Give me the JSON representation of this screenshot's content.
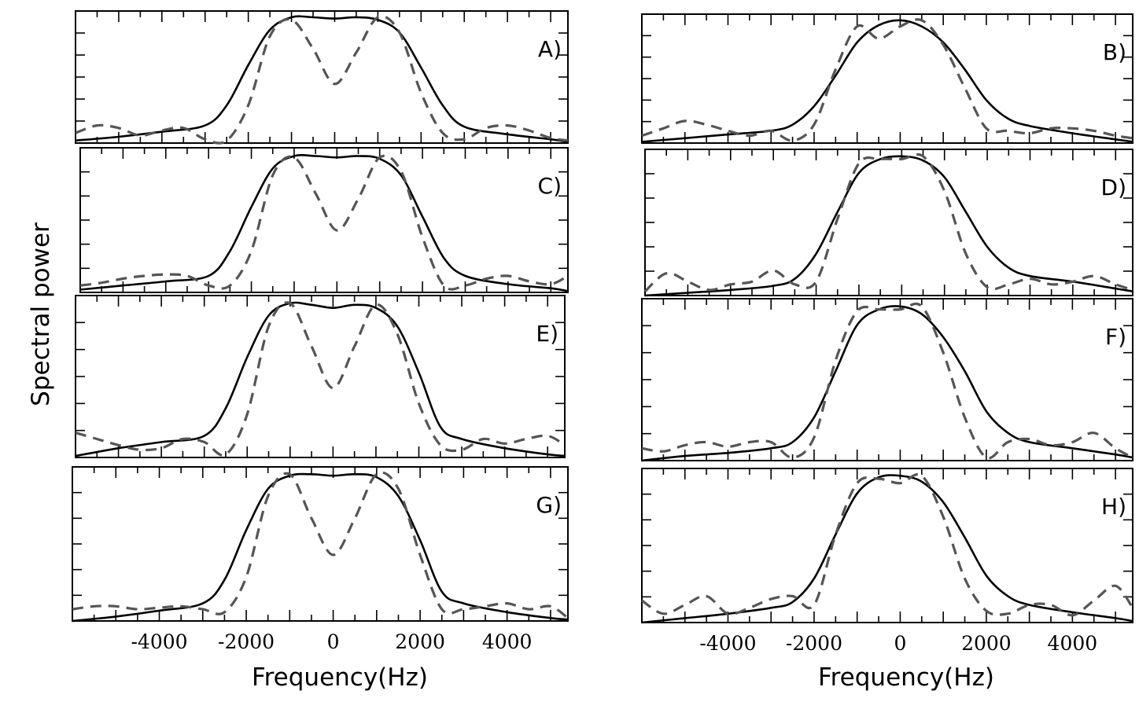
{
  "chart_data": {
    "type": "line",
    "ylabel": "Spectral power",
    "xlabel": "Frequency(Hz)",
    "xticks": [
      -4000,
      -2000,
      0,
      2000,
      4000
    ],
    "xlim": [
      -6000,
      5400
    ],
    "ylim": [
      0,
      1.05
    ],
    "grid": false,
    "legend": "none",
    "panels": [
      {
        "label": "A)",
        "series": [
          {
            "style": "solid",
            "x": [
              -6000,
              -5000,
              -4000,
              -3000,
              -2500,
              -2000,
              -1500,
              -1000,
              -500,
              0,
              500,
              1000,
              1500,
              2000,
              2500,
              3000,
              4000,
              5000,
              5400
            ],
            "y": [
              0.02,
              0.05,
              0.09,
              0.14,
              0.3,
              0.62,
              0.9,
              1.0,
              1.0,
              0.99,
              1.0,
              0.98,
              0.88,
              0.6,
              0.3,
              0.13,
              0.07,
              0.03,
              0.01
            ]
          },
          {
            "style": "dashed",
            "x": [
              -6000,
              -5500,
              -5000,
              -4500,
              -4000,
              -3500,
              -3000,
              -2500,
              -2000,
              -1500,
              -1000,
              -500,
              0,
              500,
              1000,
              1500,
              2000,
              2500,
              3000,
              3500,
              4000,
              4500,
              5000,
              5400
            ],
            "y": [
              0.08,
              0.14,
              0.12,
              0.06,
              0.1,
              0.12,
              0.03,
              0.02,
              0.3,
              0.85,
              0.98,
              0.75,
              0.47,
              0.72,
              1.0,
              0.88,
              0.4,
              0.08,
              0.03,
              0.12,
              0.14,
              0.1,
              0.04,
              0.02
            ]
          }
        ]
      },
      {
        "label": "B)",
        "series": [
          {
            "style": "solid",
            "x": [
              -6000,
              -5000,
              -4000,
              -3000,
              -2500,
              -2000,
              -1500,
              -1000,
              -500,
              0,
              500,
              1000,
              1500,
              2000,
              2500,
              3000,
              4000,
              5000,
              5400
            ],
            "y": [
              0.01,
              0.04,
              0.07,
              0.1,
              0.15,
              0.3,
              0.55,
              0.82,
              0.96,
              1.0,
              0.95,
              0.82,
              0.6,
              0.35,
              0.2,
              0.14,
              0.08,
              0.03,
              0.01
            ]
          },
          {
            "style": "dashed",
            "x": [
              -6000,
              -5500,
              -5000,
              -4500,
              -4000,
              -3500,
              -3000,
              -2500,
              -2000,
              -1500,
              -1000,
              -500,
              0,
              500,
              1000,
              1500,
              2000,
              2500,
              3000,
              3500,
              4000,
              4500,
              5000,
              5400
            ],
            "y": [
              0.06,
              0.12,
              0.18,
              0.15,
              0.1,
              0.06,
              0.1,
              0.02,
              0.15,
              0.6,
              0.95,
              0.85,
              0.95,
              1.0,
              0.8,
              0.45,
              0.12,
              0.1,
              0.08,
              0.12,
              0.12,
              0.1,
              0.06,
              0.04
            ]
          }
        ]
      },
      {
        "label": "C)",
        "series": [
          {
            "style": "solid",
            "x": [
              -6000,
              -5000,
              -4000,
              -3000,
              -2500,
              -2000,
              -1500,
              -1000,
              -500,
              0,
              500,
              1000,
              1500,
              2000,
              2500,
              3000,
              4000,
              5000,
              5400
            ],
            "y": [
              0.02,
              0.05,
              0.08,
              0.12,
              0.3,
              0.62,
              0.9,
              0.99,
              0.99,
              0.98,
              0.99,
              0.97,
              0.85,
              0.55,
              0.25,
              0.12,
              0.06,
              0.03,
              0.01
            ]
          },
          {
            "style": "dashed",
            "x": [
              -6000,
              -5500,
              -5000,
              -4500,
              -4000,
              -3500,
              -3000,
              -2500,
              -2000,
              -1500,
              -1000,
              -500,
              0,
              500,
              1000,
              1500,
              2000,
              2500,
              3000,
              3500,
              4000,
              4500,
              5000,
              5400
            ],
            "y": [
              0.05,
              0.07,
              0.1,
              0.12,
              0.13,
              0.12,
              0.05,
              0.05,
              0.3,
              0.85,
              0.98,
              0.72,
              0.45,
              0.68,
              0.98,
              0.88,
              0.4,
              0.05,
              0.05,
              0.1,
              0.12,
              0.08,
              0.06,
              0.12
            ]
          }
        ]
      },
      {
        "label": "D)",
        "series": [
          {
            "style": "solid",
            "x": [
              -6000,
              -5000,
              -4000,
              -3000,
              -2500,
              -2000,
              -1500,
              -1000,
              -500,
              0,
              500,
              1000,
              1500,
              2000,
              2500,
              3000,
              4000,
              5000,
              5400
            ],
            "y": [
              0.0,
              0.02,
              0.04,
              0.07,
              0.12,
              0.3,
              0.6,
              0.88,
              0.98,
              1.0,
              0.97,
              0.85,
              0.6,
              0.35,
              0.2,
              0.14,
              0.1,
              0.05,
              0.03
            ]
          },
          {
            "style": "dashed",
            "x": [
              -6000,
              -5500,
              -5000,
              -4500,
              -4000,
              -3500,
              -3000,
              -2500,
              -2000,
              -1500,
              -1000,
              -500,
              0,
              500,
              1000,
              1500,
              2000,
              2500,
              3000,
              3500,
              4000,
              4500,
              5000,
              5400
            ],
            "y": [
              0.03,
              0.16,
              0.1,
              0.04,
              0.08,
              0.1,
              0.18,
              0.08,
              0.1,
              0.55,
              0.95,
              0.98,
              0.98,
              1.0,
              0.75,
              0.3,
              0.06,
              0.08,
              0.12,
              0.08,
              0.1,
              0.14,
              0.08,
              0.04
            ]
          }
        ]
      },
      {
        "label": "E)",
        "series": [
          {
            "style": "solid",
            "x": [
              -6000,
              -5000,
              -4000,
              -3000,
              -2500,
              -2000,
              -1500,
              -1000,
              -500,
              0,
              500,
              1000,
              1500,
              2000,
              2500,
              3000,
              4000,
              5000,
              5400
            ],
            "y": [
              0.01,
              0.06,
              0.1,
              0.14,
              0.32,
              0.65,
              0.92,
              1.0,
              0.99,
              0.97,
              0.99,
              0.97,
              0.85,
              0.55,
              0.2,
              0.12,
              0.06,
              0.02,
              0.01
            ]
          },
          {
            "style": "dashed",
            "x": [
              -6000,
              -5500,
              -5000,
              -4500,
              -4000,
              -3500,
              -3000,
              -2500,
              -2000,
              -1500,
              -1000,
              -500,
              0,
              500,
              1000,
              1500,
              2000,
              2500,
              3000,
              3500,
              4000,
              4500,
              5000,
              5400
            ],
            "y": [
              0.16,
              0.12,
              0.08,
              0.05,
              0.06,
              0.12,
              0.1,
              0.02,
              0.28,
              0.85,
              1.0,
              0.72,
              0.45,
              0.72,
              0.99,
              0.8,
              0.35,
              0.08,
              0.05,
              0.12,
              0.09,
              0.12,
              0.14,
              0.08
            ]
          }
        ]
      },
      {
        "label": "F)",
        "series": [
          {
            "style": "solid",
            "x": [
              -6000,
              -5000,
              -4000,
              -3000,
              -2500,
              -2000,
              -1500,
              -1000,
              -500,
              0,
              500,
              1000,
              1500,
              2000,
              2500,
              3000,
              4000,
              5000,
              5400
            ],
            "y": [
              0.0,
              0.03,
              0.05,
              0.08,
              0.12,
              0.28,
              0.58,
              0.88,
              0.98,
              1.0,
              0.95,
              0.8,
              0.58,
              0.32,
              0.18,
              0.12,
              0.08,
              0.04,
              0.02
            ]
          },
          {
            "style": "dashed",
            "x": [
              -6000,
              -5500,
              -5000,
              -4500,
              -4000,
              -3500,
              -3000,
              -2500,
              -2000,
              -1500,
              -1000,
              -500,
              0,
              500,
              1000,
              1500,
              2000,
              2500,
              3000,
              3500,
              4000,
              4500,
              5000,
              5400
            ],
            "y": [
              0.08,
              0.06,
              0.1,
              0.12,
              0.09,
              0.12,
              0.12,
              0.02,
              0.15,
              0.65,
              0.97,
              0.98,
              0.98,
              1.0,
              0.7,
              0.28,
              0.02,
              0.12,
              0.14,
              0.1,
              0.12,
              0.18,
              0.08,
              0.02
            ]
          }
        ]
      },
      {
        "label": "G)",
        "series": [
          {
            "style": "solid",
            "x": [
              -6000,
              -5000,
              -4000,
              -3000,
              -2500,
              -2000,
              -1500,
              -1000,
              -500,
              0,
              500,
              1000,
              1500,
              2000,
              2500,
              3000,
              4000,
              5000,
              5400
            ],
            "y": [
              0.0,
              0.03,
              0.07,
              0.12,
              0.28,
              0.62,
              0.9,
              0.99,
              1.0,
              0.99,
              1.0,
              0.98,
              0.85,
              0.55,
              0.2,
              0.12,
              0.06,
              0.02,
              0.01
            ]
          },
          {
            "style": "dashed",
            "x": [
              -6000,
              -5500,
              -5000,
              -4500,
              -4000,
              -3500,
              -3000,
              -2500,
              -2000,
              -1500,
              -1000,
              -500,
              0,
              500,
              1000,
              1500,
              2000,
              2500,
              3000,
              3500,
              4000,
              4500,
              5000,
              5400
            ],
            "y": [
              0.08,
              0.1,
              0.1,
              0.08,
              0.09,
              0.1,
              0.08,
              0.06,
              0.3,
              0.85,
              1.0,
              0.7,
              0.45,
              0.7,
              1.0,
              0.9,
              0.45,
              0.08,
              0.08,
              0.1,
              0.12,
              0.08,
              0.1,
              0.02
            ]
          }
        ]
      },
      {
        "label": "H)",
        "series": [
          {
            "style": "solid",
            "x": [
              -6000,
              -5000,
              -4000,
              -3000,
              -2500,
              -2000,
              -1500,
              -1000,
              -500,
              0,
              500,
              1000,
              1500,
              2000,
              2500,
              3000,
              4000,
              5000,
              5400
            ],
            "y": [
              0.0,
              0.03,
              0.06,
              0.1,
              0.14,
              0.3,
              0.6,
              0.88,
              0.99,
              1.0,
              0.96,
              0.82,
              0.58,
              0.32,
              0.18,
              0.12,
              0.07,
              0.03,
              0.01
            ]
          },
          {
            "style": "dashed",
            "x": [
              -6000,
              -5500,
              -5000,
              -4500,
              -4000,
              -3500,
              -3000,
              -2500,
              -2000,
              -1500,
              -1000,
              -500,
              0,
              500,
              1000,
              1500,
              2000,
              2500,
              3000,
              3500,
              4000,
              4500,
              5000,
              5400
            ],
            "y": [
              0.15,
              0.06,
              0.12,
              0.18,
              0.06,
              0.1,
              0.16,
              0.18,
              0.12,
              0.6,
              0.95,
              0.98,
              0.95,
              1.0,
              0.72,
              0.3,
              0.08,
              0.06,
              0.12,
              0.12,
              0.05,
              0.15,
              0.25,
              0.1
            ]
          }
        ]
      }
    ]
  }
}
